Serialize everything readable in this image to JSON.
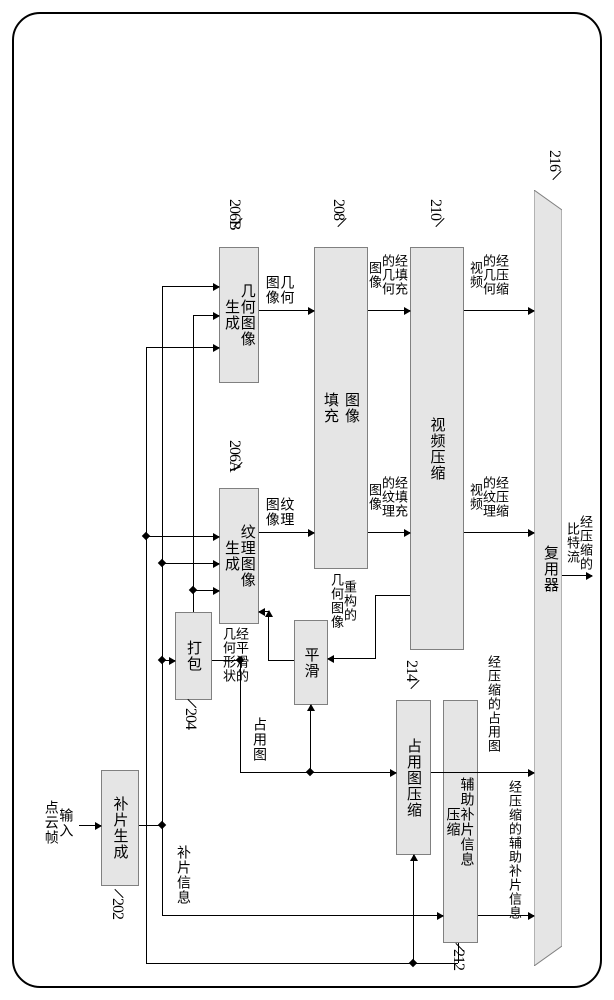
{
  "frame": {
    "border_radius": 28
  },
  "input_label": "输入\n点云帧",
  "boxes": {
    "patch_gen": {
      "text": "补片生成",
      "ref": "202"
    },
    "packing": {
      "text": "打包",
      "ref": "204"
    },
    "tex_gen": {
      "text": "纹理图像\n生成",
      "ref": "206A"
    },
    "geo_gen": {
      "text": "几何图像\n生成",
      "ref": "206B"
    },
    "img_fill": {
      "text": "图像\n填充",
      "ref": "208"
    },
    "vid_comp": {
      "text": "视频压缩",
      "ref": "210"
    },
    "smooth": {
      "text": "平滑",
      "ref": ""
    },
    "occ_comp": {
      "text": "占用图压缩",
      "ref": "214"
    },
    "aux_comp": {
      "text": "辅助补片信息\n压缩",
      "ref": "212"
    },
    "mux": {
      "text": "复用器",
      "ref": "216"
    }
  },
  "edge_labels": {
    "geo_img": "几何\n图像",
    "tex_img": "纹理\n图像",
    "filled_geo": "经填充\n的几何\n图像",
    "filled_tex": "经填充\n的纹理\n图像",
    "comp_geo": "经压缩\n的几何\n视频",
    "comp_tex": "经压缩\n的纹理\n视频",
    "recon_geo": "重构的\n几何图像",
    "smooth_geo": "经平滑的\n几何形状",
    "occ_map": "占用图",
    "patch_info": "补片信息",
    "comp_occ": "经压缩的占用图",
    "comp_aux": "经压缩的辅助补片信息",
    "output": "经压缩的\n比特流"
  },
  "colors": {
    "box_fill": "#e5e5e5",
    "box_border": "#808080",
    "line": "#000000",
    "bg": "#ffffff"
  }
}
